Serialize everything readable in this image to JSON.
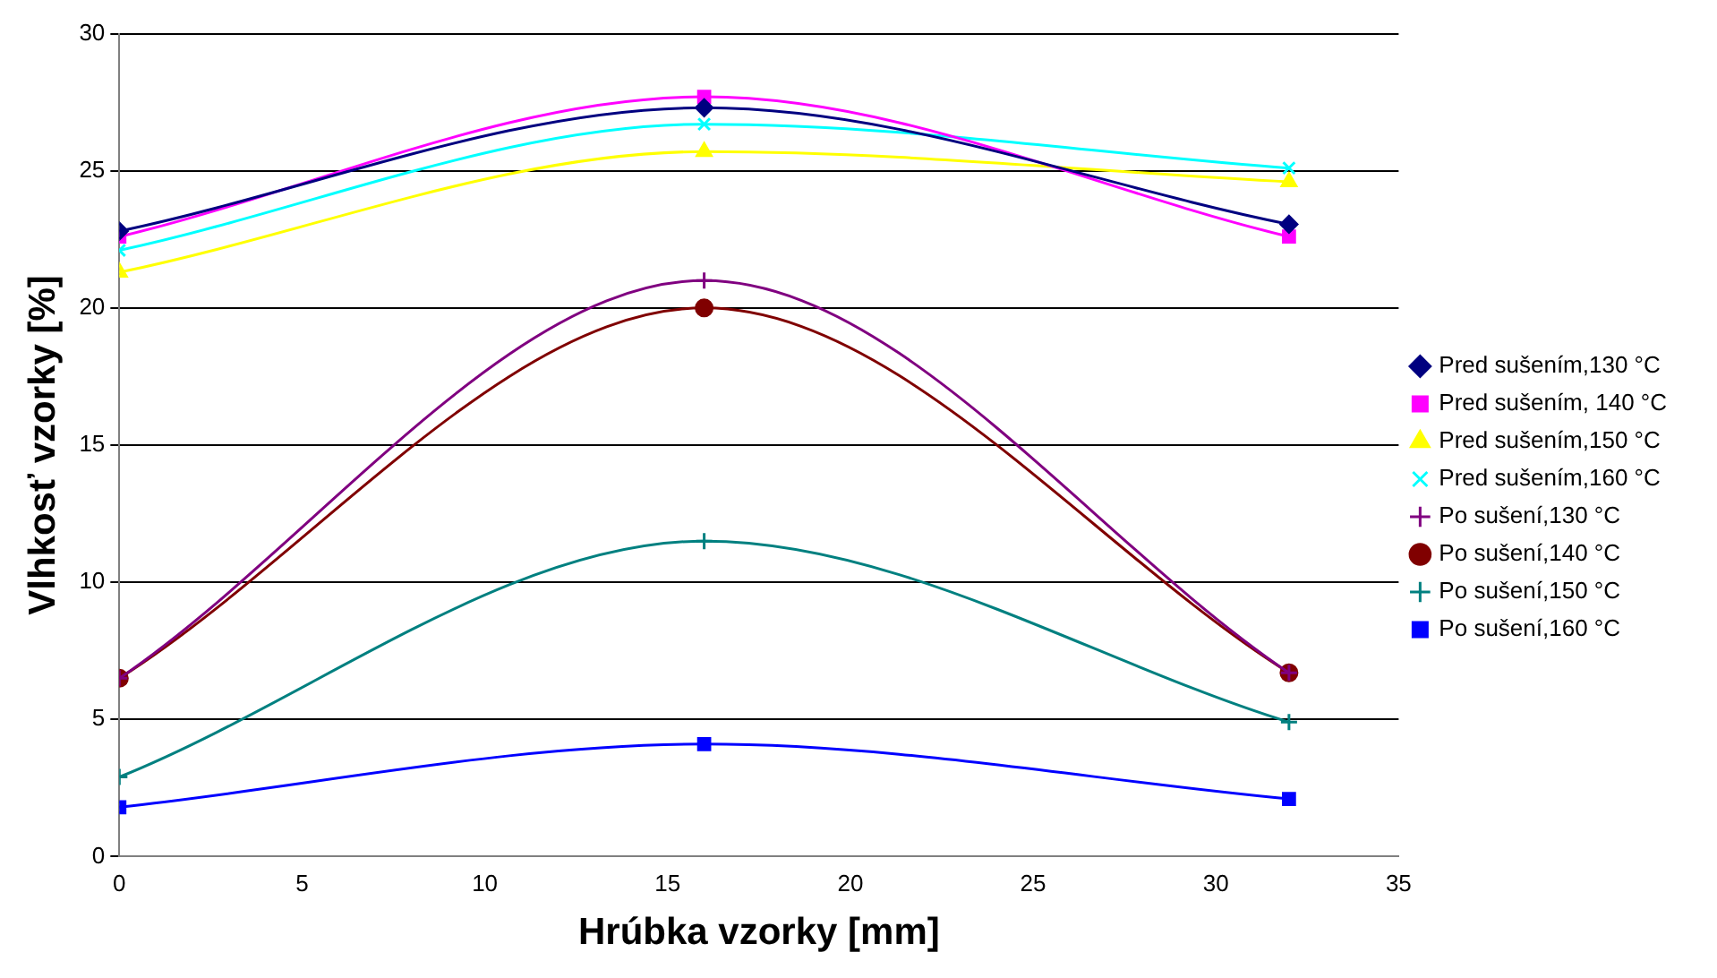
{
  "chart_data": {
    "type": "line",
    "xlabel": "Hrúbka vzorky [mm]",
    "ylabel": "Vlhkosť vzorky [%]",
    "x": [
      0,
      16,
      32
    ],
    "xlim": [
      0,
      35
    ],
    "xticks": [
      0,
      5,
      10,
      15,
      20,
      25,
      30,
      35
    ],
    "ylim": [
      0,
      30
    ],
    "yticks": [
      0,
      5,
      10,
      15,
      20,
      25,
      30
    ],
    "grid": "y",
    "legend": "right",
    "line_style": "solid",
    "series": [
      {
        "name": "Pred sušením,130 °C",
        "color": "#000080",
        "marker": "diamond",
        "values": [
          22.8,
          27.3,
          23.05
        ]
      },
      {
        "name": "Pred sušením, 140 °C",
        "color": "#ff00ff",
        "marker": "square",
        "values": [
          22.6,
          27.7,
          22.6
        ]
      },
      {
        "name": "Pred sušením,150 °C",
        "color": "#ffff00",
        "marker": "triangle",
        "values": [
          21.3,
          25.7,
          24.6
        ]
      },
      {
        "name": "Pred sušením,160 °C",
        "color": "#00ffff",
        "marker": "x",
        "values": [
          22.1,
          26.7,
          25.1
        ]
      },
      {
        "name": "Po sušení,130 °C",
        "color": "#800080",
        "marker": "cross",
        "values": [
          6.5,
          21.0,
          6.7
        ]
      },
      {
        "name": "Po sušení,140 °C",
        "color": "#800000",
        "marker": "circle",
        "values": [
          6.5,
          20.0,
          6.7
        ]
      },
      {
        "name": "Po sušení,150 °C",
        "color": "#008080",
        "marker": "cross",
        "values": [
          2.9,
          11.5,
          4.9
        ]
      },
      {
        "name": "Po sušení,160 °C",
        "color": "#0000ff",
        "marker": "square",
        "values": [
          1.8,
          4.1,
          2.1
        ]
      }
    ]
  }
}
